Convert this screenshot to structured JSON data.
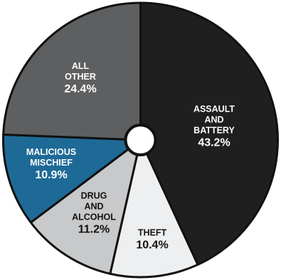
{
  "chart_data": {
    "type": "pie",
    "start_angle_deg": 0,
    "direction": "clockwise",
    "slices": [
      {
        "label_lines": [
          "ASSAULT",
          "AND",
          "BATTERY"
        ],
        "value_label": "43.2%",
        "value": 43.2,
        "color": "#1f1f1f",
        "text_color": "#ffffff"
      },
      {
        "label_lines": [
          "THEFT"
        ],
        "value_label": "10.4%",
        "value": 10.4,
        "color": "#eeeff0",
        "text_color": "#111111"
      },
      {
        "label_lines": [
          "DRUG",
          "AND",
          "ALCOHOL"
        ],
        "value_label": "11.2%",
        "value": 11.2,
        "color": "#c8c9cb",
        "text_color": "#111111"
      },
      {
        "label_lines": [
          "MALICIOUS",
          "MISCHIEF"
        ],
        "value_label": "10.9%",
        "value": 10.9,
        "color": "#1e6a96",
        "text_color": "#ffffff"
      },
      {
        "label_lines": [
          "ALL",
          "OTHER"
        ],
        "value_label": "24.4%",
        "value": 24.4,
        "color": "#5e5f61",
        "text_color": "#ffffff"
      }
    ]
  }
}
